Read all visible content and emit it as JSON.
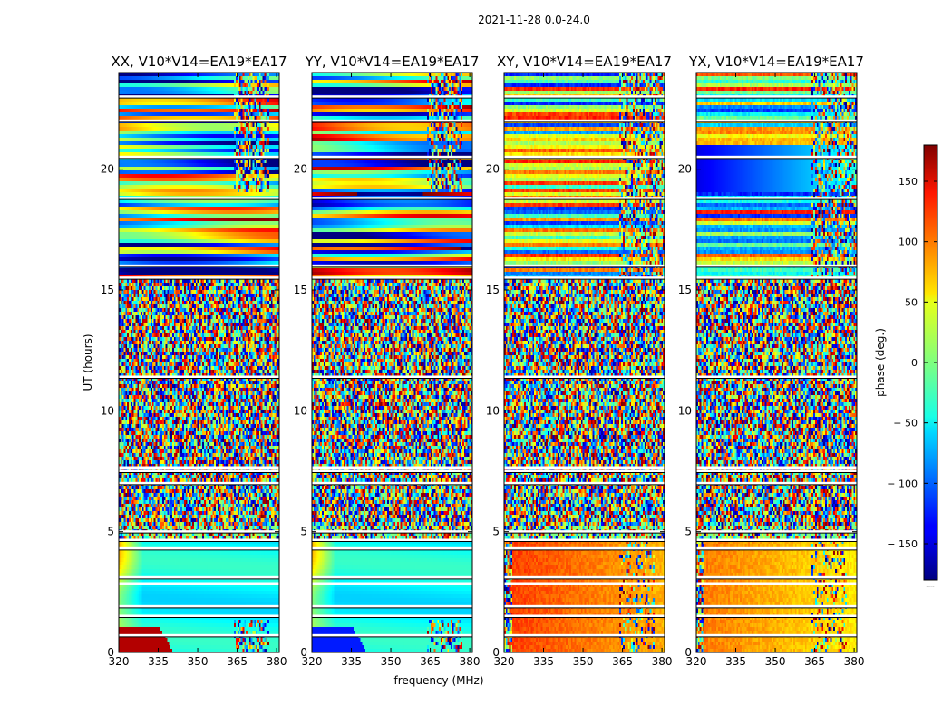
{
  "chart_data": {
    "type": "heatmap",
    "title": "2021-11-28 0.0-24.0",
    "xlabel": "frequency (MHz)",
    "ylabel": "UT (hours)",
    "xlim": [
      320,
      381
    ],
    "ylim": [
      0,
      24
    ],
    "xticks": [
      320,
      335,
      350,
      365,
      380
    ],
    "yticks": [
      0,
      5,
      10,
      15,
      20
    ],
    "colorbar": {
      "label": "phase (deg.)",
      "range": [
        -180,
        180
      ],
      "ticks": [
        150,
        100,
        50,
        0,
        -50,
        -100,
        -150
      ],
      "tick_labels": [
        "150",
        "100",
        "50",
        "0",
        "− 50",
        "− 100",
        "− 150"
      ],
      "colormap": "jet"
    },
    "panels": [
      {
        "name": "xx",
        "title": "XX, V10*V14=EA19*EA17",
        "polarization": "XX",
        "baseline": "V10*V14=EA19*EA17",
        "description": "Noisy phase 5.2-15.5 h; smooth low-frequency phase ramps 15.5-24 h and 0-4.6 h"
      },
      {
        "name": "yy",
        "title": "YY, V10*V14=EA19*EA17",
        "polarization": "YY",
        "baseline": "V10*V14=EA19*EA17",
        "description": "Similar to XX with phase wraps near the lowest frequencies"
      },
      {
        "name": "xy",
        "title": "XY, V10*V14=EA19*EA17",
        "polarization": "XY",
        "baseline": "V10*V14=EA19*EA17",
        "description": "Cross-hand; phase near +120 deg at 0-4.6 h, mixed elsewhere"
      },
      {
        "name": "yx",
        "title": "YX, V10*V14=EA19*EA17",
        "polarization": "YX",
        "baseline": "V10*V14=EA19*EA17",
        "description": "Cross-hand; phase near +90 deg at 0-4.6 h, negative near 20 h"
      }
    ],
    "flag_bands_hours": [
      0.7,
      1.5,
      1.9,
      2.85,
      3.1,
      4.3,
      4.65,
      5.0,
      7.0,
      7.5,
      7.65,
      11.4,
      15.5,
      16.0,
      18.8,
      20.5,
      22.0,
      23.0
    ],
    "rfi_band_mhz": [
      364,
      377
    ]
  },
  "colors": {
    "frame": "#000000",
    "flagged": "#ffffff"
  },
  "footnote": "....."
}
